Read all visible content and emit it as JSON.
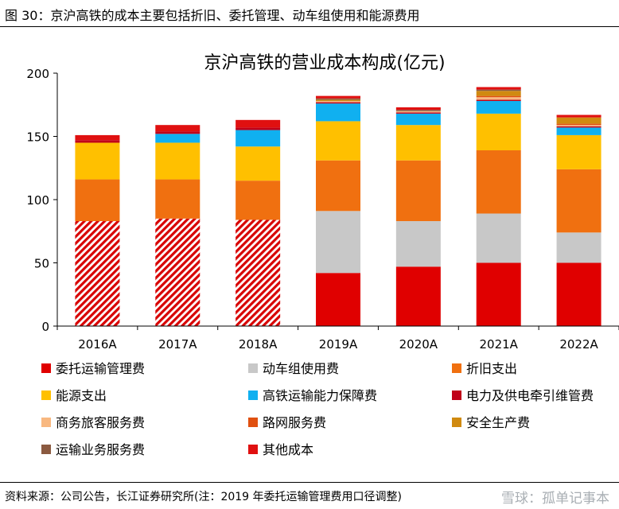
{
  "figure_caption": "图 30：京沪高铁的成本主要包括折旧、委托管理、动车组使用和能源费用",
  "source": "资料来源：公司公告，长江证券研究所(注：2019 年委托运输管理费用口径调整)",
  "watermark": "雪球：孤单记事本",
  "colors": {
    "委托运输管理费": "#e00000",
    "动车组使用费": "#c8c8c8",
    "折旧支出": "#f07010",
    "能源支出": "#ffc000",
    "高铁运输能力保障费": "#10b0f0",
    "电力及供电牵引维管费": "#c00018",
    "商务旅客服务费": "#f8b880",
    "路网服务费": "#e05010",
    "安全生产费": "#d08a10",
    "运输业务服务费": "#8b5a40",
    "其他成本": "#e01010"
  },
  "chart_data": {
    "type": "bar",
    "stacked": true,
    "title": "京沪高铁的营业成本构成(亿元)",
    "xlabel": "",
    "ylabel": "",
    "ylim": [
      0,
      200
    ],
    "yticks": [
      0,
      50,
      100,
      150,
      200
    ],
    "categories": [
      "2016A",
      "2017A",
      "2018A",
      "2019A",
      "2020A",
      "2021A",
      "2022A"
    ],
    "hatched_categories": [
      "2016A",
      "2017A",
      "2018A"
    ],
    "series": [
      {
        "name": "委托运输管理费",
        "values": [
          83,
          85,
          84,
          42,
          47,
          50,
          50
        ]
      },
      {
        "name": "动车组使用费",
        "values": [
          0,
          0,
          0,
          49,
          36,
          39,
          24
        ]
      },
      {
        "name": "折旧支出",
        "values": [
          33,
          31,
          31,
          40,
          48,
          50,
          50
        ]
      },
      {
        "name": "能源支出",
        "values": [
          29,
          29,
          27,
          31,
          28,
          29,
          27
        ]
      },
      {
        "name": "高铁运输能力保障费",
        "values": [
          0,
          7,
          13,
          14,
          9,
          10,
          6
        ]
      },
      {
        "name": "电力及供电牵引维管费",
        "values": [
          2,
          2,
          2,
          1,
          1,
          1,
          1
        ]
      },
      {
        "name": "商务旅客服务费",
        "values": [
          0,
          0,
          0,
          1,
          1,
          2,
          1
        ]
      },
      {
        "name": "路网服务费",
        "values": [
          0,
          0,
          0,
          0,
          0,
          1,
          1
        ]
      },
      {
        "name": "安全生产费",
        "values": [
          0,
          0,
          0,
          1,
          0,
          4,
          5
        ]
      },
      {
        "name": "运输业务服务费",
        "values": [
          0,
          0,
          0,
          1,
          1,
          1,
          0
        ]
      },
      {
        "name": "其他成本",
        "values": [
          4,
          5,
          6,
          2,
          2,
          2,
          2
        ]
      }
    ],
    "legend_position": "bottom"
  }
}
